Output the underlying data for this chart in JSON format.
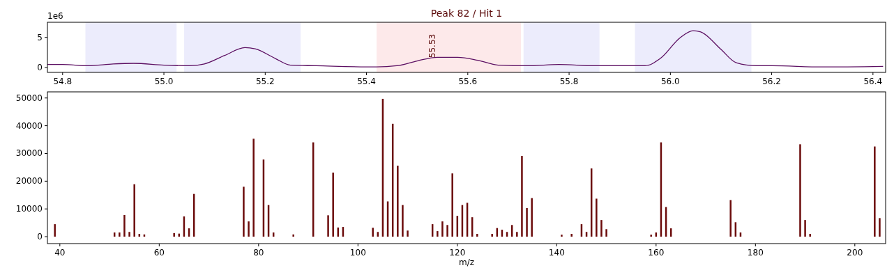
{
  "chart_data": [
    {
      "type": "line",
      "title": "Peak 82 / Hit 1",
      "annotations": [
        "1e6",
        {
          "text": "55.53",
          "x": 55.53,
          "y": 1.6
        }
      ],
      "x": [
        54.77,
        54.8,
        54.85,
        54.9,
        54.94,
        55.0,
        55.05,
        55.08,
        55.12,
        55.16,
        55.18,
        55.22,
        55.25,
        55.3,
        55.42,
        55.46,
        55.5,
        55.54,
        55.58,
        55.62,
        55.66,
        55.72,
        55.78,
        55.85,
        55.95,
        55.98,
        56.02,
        56.045,
        56.06,
        56.1,
        56.13,
        56.17,
        56.2,
        56.3,
        56.42
      ],
      "series": [
        {
          "color": "#5c0f62",
          "values": [
            0.5,
            0.5,
            0.3,
            0.6,
            0.7,
            0.4,
            0.3,
            0.6,
            2.0,
            3.3,
            3.1,
            1.5,
            0.4,
            0.3,
            0.1,
            0.3,
            1.1,
            1.7,
            1.7,
            1.2,
            0.4,
            0.3,
            0.5,
            0.3,
            0.3,
            1.5,
            5.0,
            6.1,
            5.9,
            3.0,
            0.8,
            0.3,
            0.3,
            0.1,
            0.2
          ]
        }
      ],
      "bands": [
        {
          "axis": "x",
          "from": 54.845,
          "to": 55.025,
          "color": "#ececfc"
        },
        {
          "axis": "x",
          "from": 55.04,
          "to": 55.27,
          "color": "#ececfc"
        },
        {
          "axis": "x",
          "from": 55.42,
          "to": 55.705,
          "color": "#fde9ea"
        },
        {
          "axis": "x",
          "from": 55.71,
          "to": 55.86,
          "color": "#ececfc"
        },
        {
          "axis": "x",
          "from": 55.93,
          "to": 56.16,
          "color": "#ececfc"
        }
      ],
      "xlim": [
        54.77,
        56.425
      ],
      "xticks": [
        54.8,
        {
          "value": 55,
          "label": "55.0"
        },
        55.2,
        55.4,
        55.6,
        55.8,
        {
          "value": 56,
          "label": "56.0"
        },
        56.2,
        56.4
      ],
      "ylim": [
        -0.8,
        7.5
      ],
      "yticks": [
        0,
        5
      ]
    },
    {
      "type": "bar",
      "xlabel": "m/z",
      "color": "#6b0b0b",
      "x": [
        39,
        51,
        52,
        53,
        54,
        55,
        56,
        57,
        63,
        64,
        65,
        66,
        67,
        77,
        78,
        79,
        81,
        82,
        83,
        87,
        91,
        94,
        95,
        96,
        97,
        103,
        104,
        105,
        106,
        107,
        108,
        109,
        110,
        115,
        116,
        117,
        118,
        119,
        120,
        121,
        122,
        123,
        124,
        127,
        128,
        129,
        130,
        131,
        132,
        133,
        134,
        135,
        141,
        143,
        145,
        146,
        147,
        148,
        149,
        150,
        159,
        160,
        161,
        162,
        163,
        175,
        176,
        177,
        189,
        190,
        191,
        204,
        205
      ],
      "values": [
        4500,
        1500,
        1500,
        7800,
        1700,
        18900,
        1000,
        800,
        1300,
        1100,
        7300,
        3000,
        15400,
        18000,
        5500,
        35300,
        27800,
        11400,
        1500,
        800,
        34000,
        7700,
        23100,
        3300,
        3500,
        3200,
        1700,
        49700,
        12700,
        40700,
        25600,
        11400,
        2200,
        4500,
        2000,
        5500,
        4200,
        22800,
        7500,
        11400,
        12200,
        7000,
        1000,
        1000,
        3100,
        2500,
        1700,
        4200,
        1700,
        29100,
        10300,
        13900,
        700,
        1000,
        4500,
        1700,
        24600,
        13700,
        6000,
        2700,
        700,
        1500,
        34000,
        10700,
        3000,
        13200,
        5200,
        1500,
        33300,
        6000,
        1000,
        32500,
        6700
      ],
      "xlim": [
        37.5,
        206.2
      ],
      "xticks": [
        40,
        60,
        80,
        100,
        120,
        140,
        160,
        180,
        200
      ],
      "ylim": [
        -2500,
        52200
      ],
      "yticks": [
        0,
        10000,
        20000,
        30000,
        40000,
        50000
      ]
    }
  ]
}
